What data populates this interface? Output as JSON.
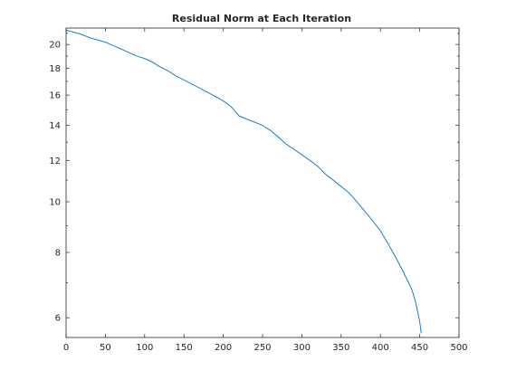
{
  "chart_data": {
    "type": "line",
    "title": "Residual Norm at Each Iteration",
    "xlabel": "",
    "ylabel": "",
    "xlim": [
      0,
      500
    ],
    "ylim": [
      5.5,
      21.5
    ],
    "yscale": "log",
    "grid": false,
    "line_color": "#0072BD",
    "x_ticks": [
      0,
      50,
      100,
      150,
      200,
      250,
      300,
      350,
      400,
      450,
      500
    ],
    "y_ticks": [
      6,
      8,
      10,
      12,
      14,
      16,
      18,
      20
    ],
    "y_minor_ticks": [
      7,
      9,
      11,
      13,
      15,
      17,
      19,
      21
    ],
    "series": [
      {
        "x": [
          0,
          10,
          20,
          30,
          40,
          50,
          60,
          70,
          80,
          90,
          100,
          110,
          120,
          130,
          140,
          150,
          160,
          170,
          180,
          190,
          200,
          210,
          220,
          230,
          240,
          250,
          260,
          270,
          280,
          290,
          300,
          310,
          320,
          330,
          340,
          350,
          360,
          370,
          380,
          390,
          400,
          410,
          420,
          430,
          440,
          445,
          450,
          452
        ],
        "y": [
          21.3,
          21.1,
          20.9,
          20.6,
          20.4,
          20.2,
          19.9,
          19.6,
          19.3,
          19.0,
          18.8,
          18.5,
          18.1,
          17.8,
          17.4,
          17.1,
          16.8,
          16.5,
          16.2,
          15.9,
          15.6,
          15.2,
          14.6,
          14.4,
          14.2,
          14.0,
          13.7,
          13.3,
          12.9,
          12.6,
          12.3,
          12.0,
          11.7,
          11.3,
          11.0,
          10.7,
          10.4,
          10.0,
          9.6,
          9.2,
          8.8,
          8.3,
          7.8,
          7.3,
          6.8,
          6.4,
          5.9,
          5.6
        ]
      }
    ]
  }
}
